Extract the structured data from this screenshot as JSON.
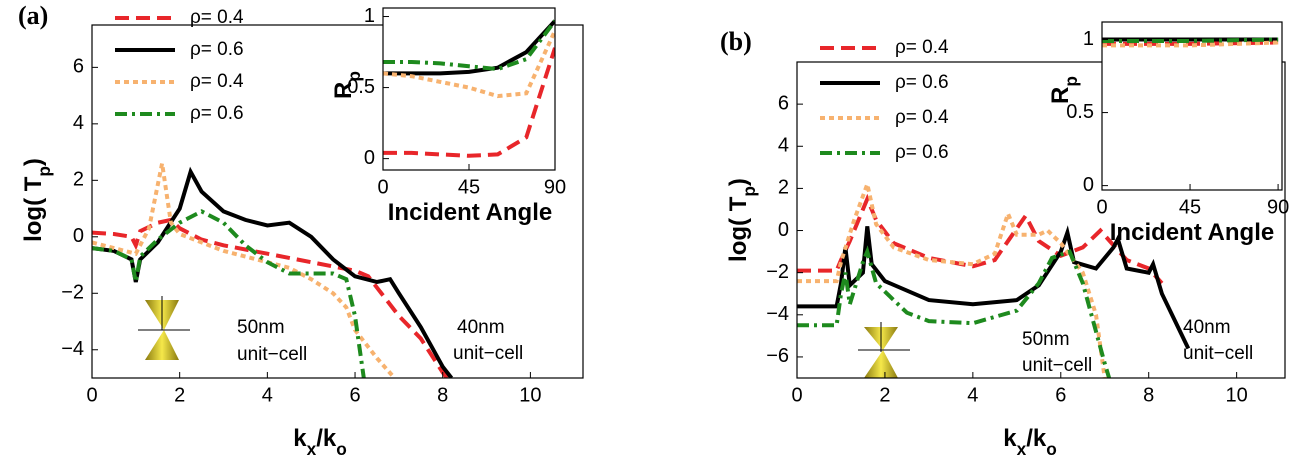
{
  "chart_data": [
    {
      "type": "line",
      "panel_label": "(a)",
      "xlabel": [
        "k",
        "x",
        "/k",
        "o"
      ],
      "ylabel": [
        "log( T",
        "p",
        ")"
      ],
      "xlim": [
        0,
        11.2
      ],
      "ylim": [
        -5,
        7.5
      ],
      "xticks": [
        0,
        2,
        4,
        6,
        8,
        10
      ],
      "yticks": [
        {
          "value": -4,
          "label": "−4"
        },
        {
          "value": -2,
          "label": "−2"
        },
        0,
        2,
        4,
        6
      ],
      "legend": "upper left",
      "annotations": [
        "50nm",
        "unit−cell",
        "40nm",
        "unit−cell"
      ],
      "series": [
        {
          "name": "ρ= 0.4",
          "color": "#e8262a",
          "linestyle": "dashed",
          "x": [
            0,
            0.5,
            0.9,
            1.0,
            1.1,
            1.5,
            1.8,
            2.0,
            2.5,
            3,
            4,
            5,
            6,
            6.3,
            7,
            7.5,
            8,
            8.1
          ],
          "values": [
            0.15,
            0.1,
            0.0,
            -0.3,
            0.2,
            0.5,
            0.6,
            0.3,
            -0.1,
            -0.3,
            -0.6,
            -0.9,
            -1.2,
            -1.4,
            -2.8,
            -3.6,
            -4.8,
            -5
          ]
        },
        {
          "name": "ρ= 0.6",
          "color": "#000000",
          "linestyle": "solid",
          "x": [
            0,
            0.5,
            0.9,
            1.0,
            1.1,
            1.5,
            2.0,
            2.25,
            2.5,
            3,
            3.5,
            4,
            4.5,
            5,
            5.5,
            6,
            6.5,
            6.8,
            7,
            7.5,
            8,
            8.2
          ],
          "values": [
            -0.4,
            -0.5,
            -0.8,
            -1.6,
            -0.8,
            -0.2,
            1.0,
            2.3,
            1.6,
            0.9,
            0.6,
            0.4,
            0.5,
            0.0,
            -0.8,
            -1.4,
            -1.6,
            -1.5,
            -2.0,
            -3.2,
            -4.6,
            -5
          ]
        },
        {
          "name": "ρ= 0.4",
          "color": "#f7b26f",
          "linestyle": "dotted",
          "x": [
            0,
            0.5,
            1.0,
            1.3,
            1.6,
            1.8,
            2,
            2.5,
            3,
            4,
            4.5,
            5,
            5.5,
            5.8,
            6,
            6.5,
            6.9
          ],
          "values": [
            -0.2,
            -0.4,
            -0.6,
            0.3,
            2.6,
            0.5,
            0.1,
            -0.2,
            -0.5,
            -0.9,
            -1.1,
            -1.5,
            -2.0,
            -2.5,
            -3.3,
            -4.3,
            -5
          ]
        },
        {
          "name": "ρ= 0.6",
          "color": "#1e8a1e",
          "linestyle": "dashdot",
          "x": [
            0,
            0.5,
            0.9,
            1.0,
            1.1,
            1.5,
            2,
            2.5,
            3,
            3.5,
            4,
            4.5,
            5,
            5.5,
            5.8,
            6,
            6.2
          ],
          "values": [
            -0.4,
            -0.5,
            -0.8,
            -1.6,
            -0.7,
            -0.1,
            0.5,
            0.9,
            0.5,
            -0.3,
            -0.9,
            -1.3,
            -1.3,
            -1.3,
            -1.5,
            -2.8,
            -5
          ]
        }
      ]
    },
    {
      "type": "line",
      "xlabel": [
        "Incident Angle"
      ],
      "ylabel": [
        "R",
        "p"
      ],
      "xlim": [
        0,
        90
      ],
      "ylim": [
        -0.08,
        1.06
      ],
      "xticks": [
        0,
        45,
        90
      ],
      "yticks": [
        0,
        0.5,
        1
      ],
      "series": [
        {
          "color": "#e8262a",
          "linestyle": "dashed",
          "x": [
            0,
            15,
            30,
            45,
            60,
            75,
            90
          ],
          "values": [
            0.04,
            0.04,
            0.03,
            0.02,
            0.03,
            0.15,
            0.78
          ]
        },
        {
          "color": "#000000",
          "linestyle": "solid",
          "x": [
            0,
            15,
            30,
            45,
            60,
            75,
            90
          ],
          "values": [
            0.6,
            0.6,
            0.6,
            0.61,
            0.64,
            0.75,
            0.97
          ]
        },
        {
          "color": "#f7b26f",
          "linestyle": "dotted",
          "x": [
            0,
            15,
            30,
            45,
            60,
            75,
            90
          ],
          "values": [
            0.6,
            0.58,
            0.54,
            0.5,
            0.44,
            0.46,
            0.9
          ]
        },
        {
          "color": "#1e8a1e",
          "linestyle": "dashdot",
          "x": [
            0,
            15,
            30,
            45,
            60,
            75,
            90
          ],
          "values": [
            0.68,
            0.68,
            0.67,
            0.65,
            0.63,
            0.7,
            0.97
          ]
        }
      ]
    },
    {
      "type": "line",
      "panel_label": "(b)",
      "xlabel": [
        "k",
        "x",
        "/k",
        "o"
      ],
      "ylabel": [
        "log( T",
        "p",
        ")"
      ],
      "xlim": [
        0,
        11.1
      ],
      "ylim": [
        -7,
        8
      ],
      "xticks": [
        0,
        2,
        4,
        6,
        8,
        10
      ],
      "yticks": [
        {
          "value": -6,
          "label": "−6"
        },
        {
          "value": -4,
          "label": "−4"
        },
        {
          "value": -2,
          "label": "−2"
        },
        0,
        2,
        4,
        6
      ],
      "legend": "upper left",
      "annotations": [
        "50nm",
        "unit−cell",
        "40nm",
        "unit−cell"
      ],
      "series": [
        {
          "name": "ρ= 0.4",
          "color": "#e8262a",
          "linestyle": "dashed",
          "x": [
            0,
            0.9,
            1.0,
            1.2,
            1.5,
            1.6,
            1.8,
            2.2,
            3,
            4,
            4.5,
            5,
            5.2,
            5.5,
            6,
            6.5,
            6.9,
            7.2,
            7.5,
            8,
            8.3
          ],
          "values": [
            -1.9,
            -1.9,
            -1.4,
            -0.5,
            1.0,
            1.5,
            0.5,
            -0.6,
            -1.3,
            -1.7,
            -1.4,
            0.1,
            0.7,
            -0.5,
            -1.2,
            -0.8,
            0.0,
            -0.7,
            -1.4,
            -1.8,
            -2.5
          ]
        },
        {
          "name": "ρ= 0.6",
          "color": "#000000",
          "linestyle": "solid",
          "x": [
            0,
            0.9,
            1.0,
            1.1,
            1.2,
            1.5,
            1.6,
            1.7,
            2,
            3,
            4,
            5,
            5.5,
            6.0,
            6.15,
            6.3,
            6.8,
            7.2,
            7.3,
            7.5,
            8.0,
            8.1,
            8.3,
            8.9
          ],
          "values": [
            -3.6,
            -3.6,
            -2.5,
            -0.8,
            -2.6,
            -2.0,
            0.2,
            -1.6,
            -2.4,
            -3.3,
            -3.5,
            -3.3,
            -2.6,
            -1.0,
            -0.1,
            -1.5,
            -1.8,
            -0.8,
            -0.4,
            -1.8,
            -2.0,
            -1.6,
            -3.0,
            -5.6
          ]
        },
        {
          "name": "ρ= 0.4",
          "color": "#f7b26f",
          "linestyle": "dotted",
          "x": [
            0,
            0.9,
            1.0,
            1.3,
            1.6,
            1.8,
            2.2,
            3,
            4,
            4.5,
            4.8,
            5.0,
            5.5,
            5.7,
            6.0,
            6.5,
            6.8,
            7.0
          ],
          "values": [
            -2.4,
            -2.4,
            -1.5,
            0.5,
            2.2,
            0.3,
            -0.8,
            -1.4,
            -1.6,
            -1.1,
            0.8,
            -0.2,
            -0.2,
            0.0,
            -0.6,
            -2.0,
            -4.0,
            -7
          ]
        },
        {
          "name": "ρ= 0.6",
          "color": "#1e8a1e",
          "linestyle": "dashdot",
          "x": [
            0,
            0.9,
            1.0,
            1.1,
            1.2,
            1.5,
            1.6,
            1.8,
            2.5,
            3,
            4,
            5,
            5.5,
            5.8,
            6.2,
            6.5,
            7,
            7.1
          ],
          "values": [
            -4.5,
            -4.5,
            -3.0,
            -2.0,
            -3.5,
            -1.5,
            -1.0,
            -2.5,
            -3.9,
            -4.3,
            -4.4,
            -3.8,
            -2.5,
            -1.3,
            -1.0,
            -2.5,
            -6.3,
            -7
          ]
        }
      ]
    },
    {
      "type": "line",
      "xlabel": [
        "Incident Angle"
      ],
      "ylabel": [
        "R",
        "p"
      ],
      "xlim": [
        0,
        92
      ],
      "ylim": [
        -0.03,
        1.12
      ],
      "xticks": [
        0,
        45,
        90
      ],
      "yticks": [
        0,
        0.5,
        1
      ],
      "series": [
        {
          "color": "#e8262a",
          "linestyle": "dashed",
          "x": [
            0,
            45,
            90
          ],
          "values": [
            0.97,
            0.97,
            0.98
          ]
        },
        {
          "color": "#000000",
          "linestyle": "solid",
          "x": [
            0,
            45,
            90
          ],
          "values": [
            1.0,
            1.0,
            1.0
          ]
        },
        {
          "color": "#f7b26f",
          "linestyle": "dotted",
          "x": [
            0,
            45,
            90
          ],
          "values": [
            0.96,
            0.96,
            0.98
          ]
        },
        {
          "color": "#1e8a1e",
          "linestyle": "dashdot",
          "x": [
            0,
            45,
            90
          ],
          "values": [
            0.99,
            0.99,
            1.0
          ]
        }
      ]
    }
  ]
}
